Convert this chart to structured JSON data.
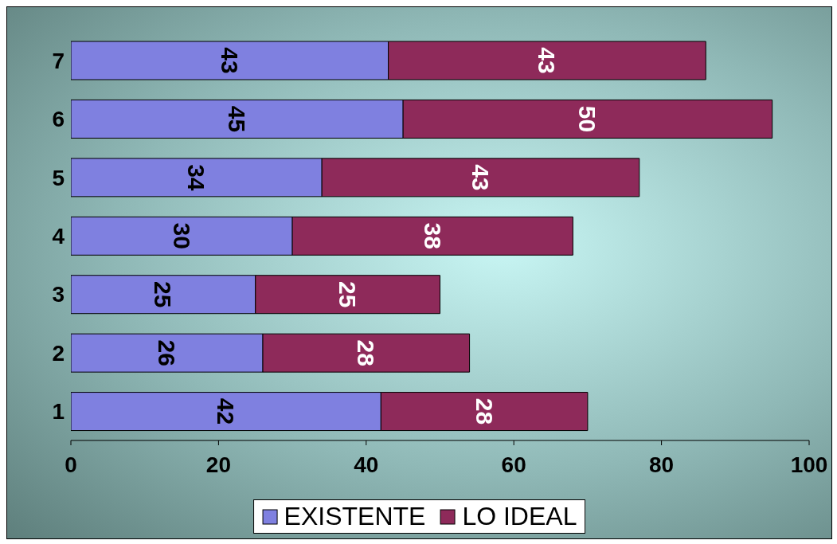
{
  "chart_data": {
    "type": "bar",
    "orientation": "horizontal",
    "stacked": true,
    "categories": [
      "7",
      "6",
      "5",
      "4",
      "3",
      "2",
      "1"
    ],
    "series": [
      {
        "name": "EXISTENTE",
        "color": "#7f80e0",
        "values": [
          43,
          45,
          34,
          30,
          25,
          26,
          42
        ]
      },
      {
        "name": "LO IDEAL",
        "color": "#8e2a5a",
        "values": [
          43,
          50,
          43,
          38,
          25,
          28,
          28
        ]
      }
    ],
    "xlim": [
      0,
      100
    ],
    "xticks": [
      0,
      20,
      40,
      60,
      80,
      100
    ],
    "data_labels": true,
    "legend": "bottom",
    "grid": false
  }
}
